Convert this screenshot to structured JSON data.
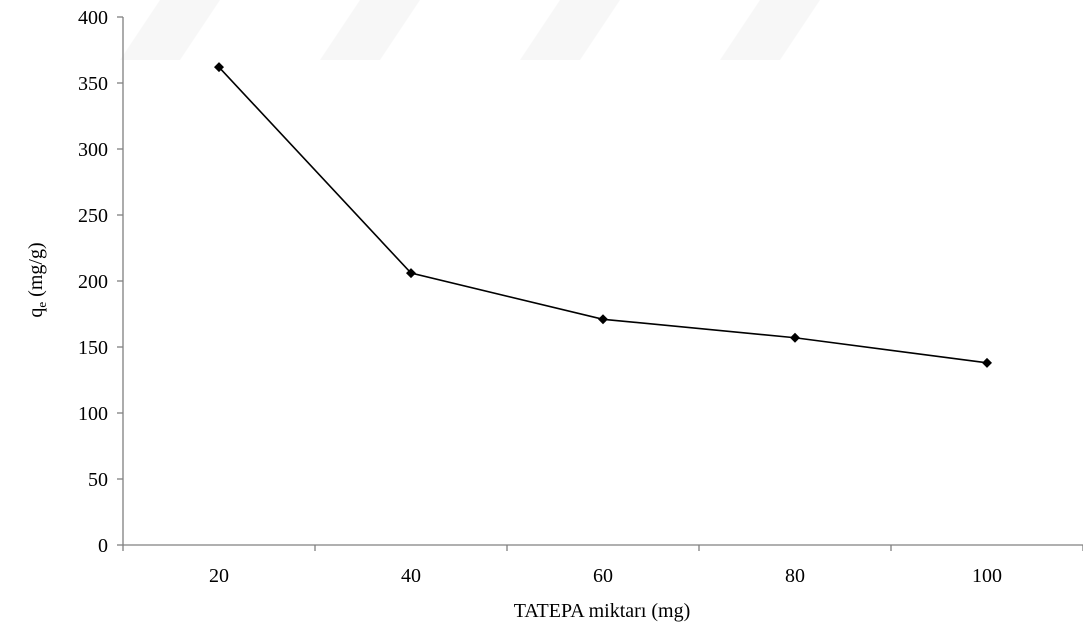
{
  "chart_data": {
    "type": "line",
    "title": "",
    "xlabel": "TATEPA miktarı (mg)",
    "ylabel": {
      "main": "q",
      "sub": "e",
      "unit": " (mg/g)"
    },
    "x": [
      20,
      40,
      60,
      80,
      100
    ],
    "x_tick_labels": [
      "20",
      "40",
      "60",
      "80",
      "100"
    ],
    "y_tick_labels": [
      "0",
      "50",
      "100",
      "150",
      "200",
      "250",
      "300",
      "350",
      "400"
    ],
    "ylim": [
      0,
      400
    ],
    "grid": false,
    "legend": "none",
    "series": [
      {
        "values": [
          362,
          206,
          171,
          157,
          138
        ],
        "marker": "diamond",
        "color": "#000000"
      }
    ]
  }
}
